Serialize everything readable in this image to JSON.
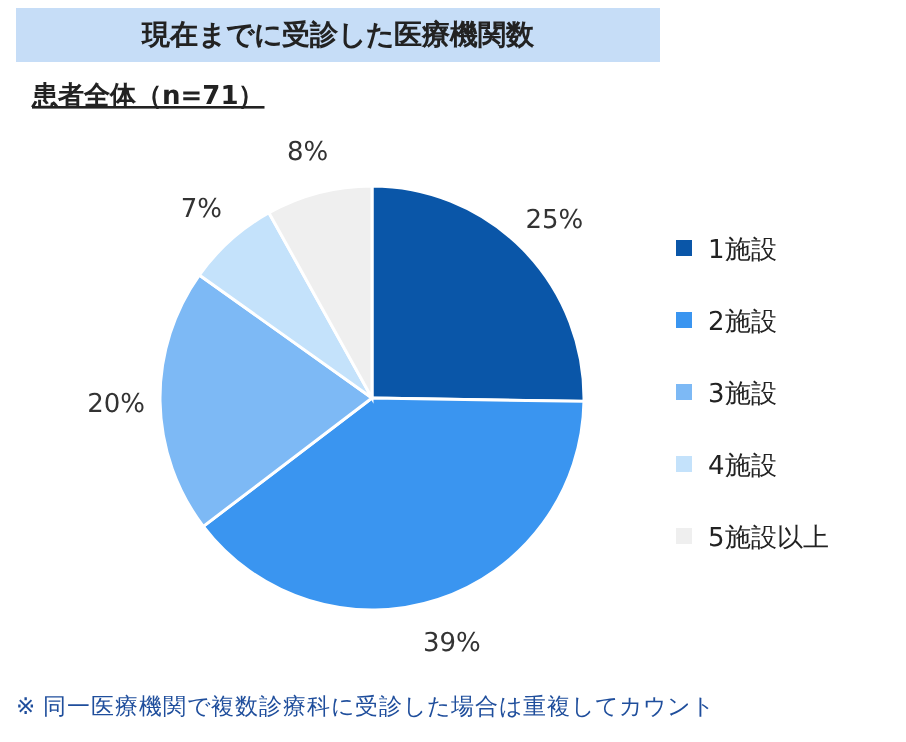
{
  "chart_data": {
    "type": "pie",
    "title": "現在までに受診した医療機関数",
    "subtitle": "患者全体（n=71）",
    "categories": [
      "1施設",
      "2施設",
      "3施設",
      "4施設",
      "5施設以上"
    ],
    "values": [
      25,
      39,
      20,
      7,
      8
    ],
    "value_labels": [
      "25%",
      "39%",
      "20%",
      "7%",
      "8%"
    ],
    "colors": [
      "#0a56a8",
      "#3a95f0",
      "#7db9f5",
      "#c4e2fb",
      "#efefef"
    ],
    "legend": "right",
    "annotations": [
      "※ 同一医療機関で複数診療科に受診した場合は重複してカウント"
    ]
  }
}
